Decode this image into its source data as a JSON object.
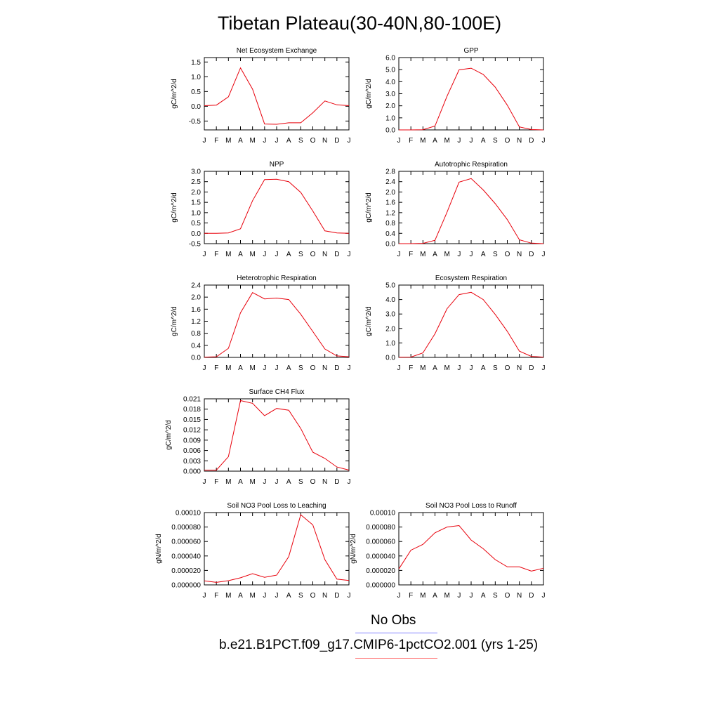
{
  "title": "Tibetan Plateau(30-40N,80-100E)",
  "months": [
    "J",
    "F",
    "M",
    "A",
    "M",
    "J",
    "J",
    "A",
    "S",
    "O",
    "N",
    "D",
    "J"
  ],
  "legend": [
    {
      "label": "No Obs",
      "color": "#7f7fff"
    },
    {
      "label": "b.e21.B1PCT.f09_g17.CMIP6-1pctCO2.001 (yrs 1-25)",
      "color": "#ff6f6f"
    }
  ],
  "series_color": "#e8000b",
  "chart_data": [
    {
      "type": "line",
      "title": "Net Ecosystem Exchange",
      "ylabel": "gC/m^2/d",
      "ylim": [
        -0.8,
        1.65
      ],
      "yticks": [
        "1.5",
        "1.0",
        "0.5",
        "0.0",
        "-0.5"
      ],
      "ytick_values": [
        1.5,
        1.0,
        0.5,
        0.0,
        -0.5
      ],
      "values": [
        0.02,
        0.04,
        0.32,
        1.3,
        0.58,
        -0.6,
        -0.61,
        -0.56,
        -0.56,
        -0.22,
        0.18,
        0.05,
        0.02
      ]
    },
    {
      "type": "line",
      "title": "GPP",
      "ylabel": "gC/m^2/d",
      "ylim": [
        0.0,
        6.0
      ],
      "yticks": [
        "6.0",
        "5.0",
        "4.0",
        "3.0",
        "2.0",
        "1.0",
        "0.0"
      ],
      "ytick_values": [
        6.0,
        5.0,
        4.0,
        3.0,
        2.0,
        1.0,
        0.0
      ],
      "values": [
        0.0,
        0.0,
        0.02,
        0.32,
        2.8,
        4.98,
        5.12,
        4.6,
        3.55,
        2.05,
        0.25,
        0.03,
        0.0
      ]
    },
    {
      "type": "line",
      "title": "NPP",
      "ylabel": "gC/m^2/d",
      "ylim": [
        -0.5,
        3.0
      ],
      "yticks": [
        "3.0",
        "2.5",
        "2.0",
        "1.5",
        "1.0",
        "0.5",
        "0.0",
        "-0.5"
      ],
      "ytick_values": [
        3.0,
        2.5,
        2.0,
        1.5,
        1.0,
        0.5,
        0.0,
        -0.5
      ],
      "values": [
        0.0,
        0.0,
        0.02,
        0.22,
        1.58,
        2.6,
        2.62,
        2.5,
        1.98,
        1.08,
        0.12,
        0.02,
        0.0
      ]
    },
    {
      "type": "line",
      "title": "Autotrophic Respiration",
      "ylabel": "gC/m^2/d",
      "ylim": [
        0.0,
        2.8
      ],
      "yticks": [
        "2.8",
        "2.4",
        "2.0",
        "1.6",
        "1.2",
        "0.8",
        "0.4",
        "0.0"
      ],
      "ytick_values": [
        2.8,
        2.4,
        2.0,
        1.6,
        1.2,
        0.8,
        0.4,
        0.0
      ],
      "values": [
        0.0,
        0.0,
        0.01,
        0.13,
        1.22,
        2.38,
        2.52,
        2.08,
        1.55,
        0.93,
        0.15,
        0.02,
        0.0
      ]
    },
    {
      "type": "line",
      "title": "Heterotrophic Respiration",
      "ylabel": "gC/m^2/d",
      "ylim": [
        0.0,
        2.4
      ],
      "yticks": [
        "2.4",
        "2.0",
        "1.6",
        "1.2",
        "0.8",
        "0.4",
        "0.0"
      ],
      "ytick_values": [
        2.4,
        2.0,
        1.6,
        1.2,
        0.8,
        0.4,
        0.0
      ],
      "values": [
        0.01,
        0.02,
        0.3,
        1.48,
        2.15,
        1.94,
        1.97,
        1.92,
        1.43,
        0.86,
        0.28,
        0.05,
        0.02
      ]
    },
    {
      "type": "line",
      "title": "Ecosystem Respiration",
      "ylabel": "gC/m^2/d",
      "ylim": [
        0.0,
        5.0
      ],
      "yticks": [
        "5.0",
        "4.0",
        "3.0",
        "2.0",
        "1.0",
        "0.0"
      ],
      "ytick_values": [
        5.0,
        4.0,
        3.0,
        2.0,
        1.0,
        0.0
      ],
      "values": [
        0.01,
        0.02,
        0.31,
        1.63,
        3.37,
        4.34,
        4.5,
        4.0,
        2.97,
        1.8,
        0.43,
        0.07,
        0.02
      ]
    },
    {
      "type": "line",
      "title": "Surface CH4 Flux",
      "ylabel": "gC/m^2/d",
      "ylim": [
        0.0,
        0.021
      ],
      "yticks": [
        "0.021",
        "0.018",
        "0.015",
        "0.012",
        "0.009",
        "0.006",
        "0.003",
        "0.000"
      ],
      "ytick_values": [
        0.021,
        0.018,
        0.015,
        0.012,
        0.009,
        0.006,
        0.003,
        0.0
      ],
      "values": [
        0.0003,
        0.0003,
        0.0042,
        0.0205,
        0.0197,
        0.0161,
        0.0182,
        0.0177,
        0.0124,
        0.0055,
        0.0037,
        0.0012,
        0.0003
      ]
    },
    {
      "type": "line",
      "title": "Soil NO3 Pool Loss to Leaching",
      "ylabel": "gN/m^2/d",
      "ylim": [
        0.0,
        0.0001
      ],
      "yticks": [
        "0.00010",
        "0.000080",
        "0.000060",
        "0.000040",
        "0.000020",
        "0.000000"
      ],
      "ytick_values": [
        0.0001,
        8e-05,
        6e-05,
        4e-05,
        2e-05,
        0.0
      ],
      "values": [
        5.5e-06,
        3.5e-06,
        5.8e-06,
        9.8e-06,
        1.55e-05,
        1.05e-05,
        1.35e-05,
        3.9e-05,
        9.7e-05,
        8.3e-05,
        3.5e-05,
        8e-06,
        6e-06
      ]
    },
    {
      "type": "line",
      "title": "Soil NO3 Pool Loss to Runoff",
      "ylabel": "gN/m^2/d",
      "ylim": [
        0.0,
        0.0001
      ],
      "yticks": [
        "0.00010",
        "0.000080",
        "0.000060",
        "0.000040",
        "0.000020",
        "0.000000"
      ],
      "ytick_values": [
        0.0001,
        8e-05,
        6e-05,
        4e-05,
        2e-05,
        0.0
      ],
      "values": [
        2.2e-05,
        4.8e-05,
        5.6e-05,
        7.2e-05,
        8e-05,
        8.2e-05,
        6.2e-05,
        5e-05,
        3.5e-05,
        2.5e-05,
        2.5e-05,
        1.9e-05,
        2.3e-05
      ]
    }
  ]
}
